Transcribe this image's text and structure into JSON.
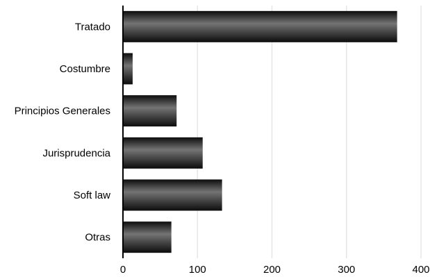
{
  "chart_data": {
    "type": "bar",
    "orientation": "horizontal",
    "categories": [
      "Tratado",
      "Costumbre",
      "Principios Generales",
      "Jurisprudencia",
      "Soft law",
      "Otras"
    ],
    "values": [
      368,
      13,
      72,
      107,
      133,
      65
    ],
    "title": "",
    "xlabel": "",
    "ylabel": "",
    "xlim": [
      0,
      400
    ],
    "x_ticks": [
      0,
      100,
      200,
      300,
      400
    ],
    "x_tick_labels": [
      "0",
      "100",
      "200",
      "300",
      "400"
    ],
    "grid": "vertical",
    "legend": "none",
    "colors": {
      "bar_dark": "#0c0c0c",
      "bar_light": "#747474",
      "gridline": "#e6e6e6",
      "axis": "#000000"
    }
  }
}
